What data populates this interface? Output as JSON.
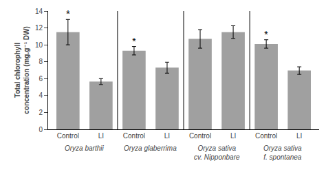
{
  "chart_data": {
    "type": "bar",
    "categories": [
      "Control",
      "LI",
      "Control",
      "LI",
      "Control",
      "LI",
      "Control",
      "LI"
    ],
    "values": [
      11.5,
      5.65,
      9.3,
      7.3,
      10.7,
      11.5,
      10.1,
      6.95
    ],
    "errors": [
      1.5,
      0.35,
      0.5,
      0.65,
      1.1,
      0.75,
      0.5,
      0.45
    ],
    "color": "#a0a0a0",
    "ylabel": "Total chlorophyll\nconcentration (mg.g⁻¹ DW)",
    "ylim": [
      0,
      14
    ],
    "yticks": [
      0,
      2,
      4,
      6,
      8,
      10,
      12,
      14
    ],
    "grid": false,
    "group_labels": [
      "Oryza barthii",
      "Oryza glaberrima",
      "Oryza sativa\ncv. Nipponbare",
      "Oryza sativa\nf. spontanea"
    ],
    "annotations": [
      {
        "text": "*",
        "category": 0
      },
      {
        "text": "*",
        "category": 2
      },
      {
        "text": "*",
        "category": 6
      }
    ]
  }
}
